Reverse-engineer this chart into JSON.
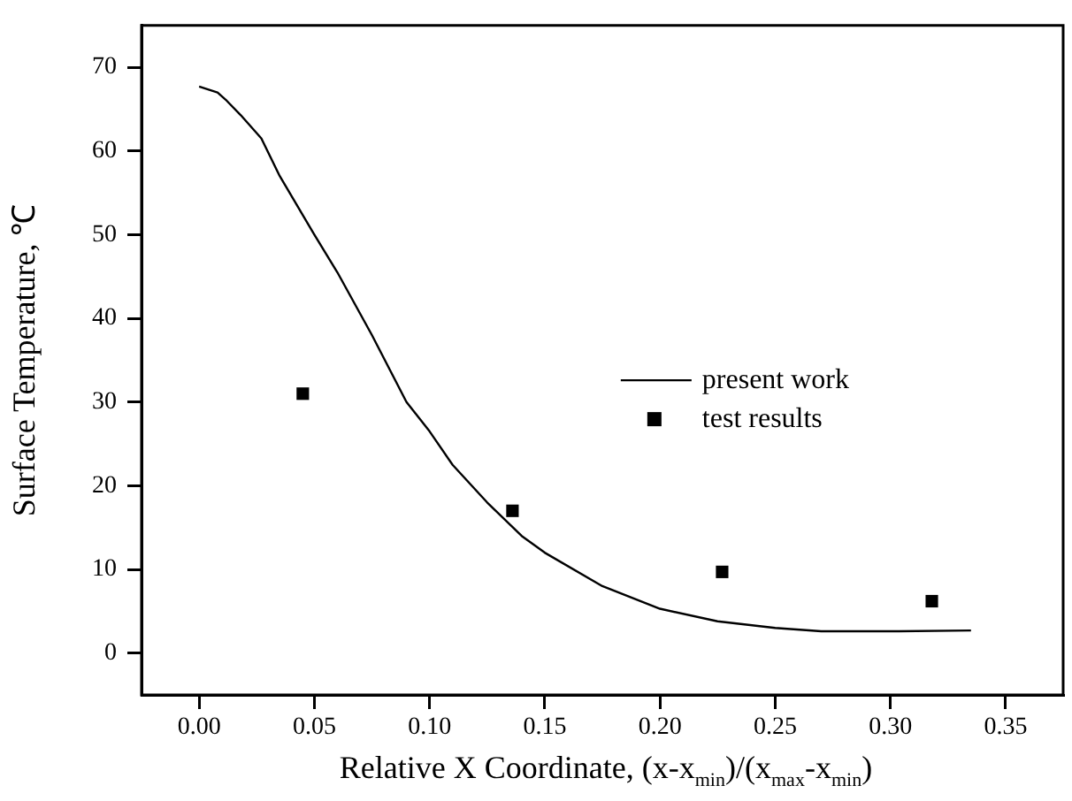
{
  "chart_data": {
    "type": "line",
    "xlabel": "Relative X Coordinate, (x-x$_{min}$)/(x$_{max}$-x$_{min}$)",
    "ylabel": "Surface Temperature, ℃",
    "xlim": [
      -0.025,
      0.375
    ],
    "xticks": [
      {
        "value": 0,
        "label": "0.00"
      },
      {
        "value": 0.05,
        "label": "0.05"
      },
      {
        "value": 0.1,
        "label": "0.10"
      },
      {
        "value": 0.15,
        "label": "0.15"
      },
      {
        "value": 0.2,
        "label": "0.20"
      },
      {
        "value": 0.25,
        "label": "0.25"
      },
      {
        "value": 0.3,
        "label": "0.30"
      },
      {
        "value": 0.35,
        "label": "0.35"
      }
    ],
    "ylim": [
      -5,
      75
    ],
    "yticks": [
      0,
      10,
      20,
      30,
      40,
      50,
      60,
      70
    ],
    "grid": false,
    "legend": "right",
    "series": [
      {
        "name": "present work",
        "color": "#000000",
        "marker": "none",
        "line_style": "solid",
        "x": [
          0,
          0.008,
          0.012,
          0.018,
          0.027,
          0.035,
          0.05,
          0.06,
          0.075,
          0.09,
          0.1,
          0.11,
          0.125,
          0.14,
          0.15,
          0.175,
          0.2,
          0.225,
          0.25,
          0.27,
          0.3,
          0.335
        ],
        "values": [
          67.7,
          67,
          66,
          64.3,
          61.5,
          57,
          50,
          45.5,
          38,
          30,
          26.5,
          22.5,
          18,
          14,
          12,
          8,
          5.3,
          3.8,
          3,
          2.6,
          2.6,
          2.7
        ]
      },
      {
        "name": "test results",
        "type": "scatter",
        "color": "#000000",
        "marker": "square",
        "x": [
          0.045,
          0.136,
          0.227,
          0.318
        ],
        "values": [
          31,
          17,
          9.7,
          6.2
        ]
      }
    ]
  }
}
